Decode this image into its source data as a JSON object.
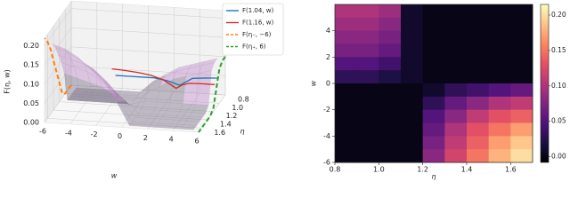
{
  "chart_data": [
    {
      "type": "surface3d",
      "xlabel": "w",
      "ylabel": "η",
      "zlabel": "F(η, w)",
      "xlim": [
        -6,
        6
      ],
      "xticks": [
        -6,
        -4,
        -2,
        0,
        2,
        4,
        6
      ],
      "ylim": [
        0.8,
        1.7
      ],
      "yticks": [
        0.8,
        {
          "value": 1.0,
          "label": "1.0"
        },
        1.2,
        1.4,
        1.6
      ],
      "zlim": [
        0,
        0.22
      ],
      "zticks": [
        {
          "value": 0,
          "label": "0.00"
        },
        {
          "value": 0.05,
          "label": "0.05"
        },
        {
          "value": 0.1,
          "label": "0.10"
        },
        {
          "value": 0.15,
          "label": "0.15"
        },
        {
          "value": 0.2,
          "label": "0.20"
        }
      ],
      "legend": "upper right",
      "series": [
        {
          "name": "F(1.04, w)",
          "color": "#1f77b4",
          "dashed": false,
          "eta": 1.04,
          "w": [
            -2,
            -1,
            0,
            1,
            2,
            2.5,
            3,
            3.5,
            4,
            5,
            6
          ],
          "values": [
            0.06,
            0.06,
            0.06,
            0.06,
            0.055,
            0.05,
            0.045,
            0.055,
            0.065,
            0.068,
            0.07
          ]
        },
        {
          "name": "F(1.16, w)",
          "color": "#d62728",
          "dashed": false,
          "eta": 1.16,
          "w": [
            -2,
            -1,
            0,
            1,
            2,
            2.5,
            3,
            3.5,
            4,
            5,
            6
          ],
          "values": [
            0.09,
            0.088,
            0.085,
            0.08,
            0.07,
            0.06,
            0.05,
            0.06,
            0.065,
            0.066,
            0.066
          ]
        },
        {
          "name": "F(η₋, −6)",
          "color": "#ff7f0e",
          "dashed": true,
          "w": -6,
          "eta": [
            0.8,
            0.9,
            1.0,
            1.1,
            1.2,
            1.3,
            1.4,
            1.5,
            1.6,
            1.7
          ],
          "values": [
            0,
            0,
            0,
            0.01,
            0.05,
            0.09,
            0.13,
            0.17,
            0.2,
            0.22
          ]
        },
        {
          "name": "F(η₊, 6)",
          "color": "#2ca02c",
          "dashed": true,
          "w": 6,
          "eta": [
            0.8,
            0.9,
            1.0,
            1.1,
            1.2,
            1.3,
            1.4,
            1.5,
            1.6,
            1.7
          ],
          "values": [
            0.1,
            0.1,
            0.09,
            0.05,
            0.01,
            0,
            0,
            0,
            0,
            0
          ]
        }
      ]
    },
    {
      "type": "heatmap",
      "xlabel": "η",
      "ylabel": "w",
      "colormap": "magma",
      "xlim": [
        0.8,
        1.7
      ],
      "xticks": [
        0.8,
        {
          "value": 1.0,
          "label": "1.0"
        },
        1.2,
        1.4,
        1.6
      ],
      "ylim": [
        -6,
        6
      ],
      "yticks": [
        -6,
        -4,
        -2,
        0,
        2,
        4
      ],
      "clim": [
        -0.008,
        0.215
      ],
      "cticks": [
        {
          "value": 0,
          "label": "0.00"
        },
        {
          "value": 0.05,
          "label": "0.05"
        },
        {
          "value": 0.1,
          "label": "0.10"
        },
        {
          "value": 0.15,
          "label": "0.15"
        },
        {
          "value": 0.2,
          "label": "0.20"
        }
      ],
      "x": [
        0.85,
        0.95,
        1.05,
        1.15,
        1.25,
        1.35,
        1.45,
        1.55,
        1.65
      ],
      "y": [
        5.5,
        4.5,
        3.5,
        2.5,
        1.5,
        0.5,
        -0.5,
        -1.5,
        -2.5,
        -3.5,
        -4.5,
        -5.5
      ],
      "z": [
        [
          0.1,
          0.1,
          0.09,
          0.01,
          0,
          0,
          0,
          0,
          0
        ],
        [
          0.09,
          0.09,
          0.08,
          0.01,
          0,
          0,
          0,
          0,
          0
        ],
        [
          0.08,
          0.08,
          0.07,
          0.01,
          0,
          0,
          0,
          0,
          0
        ],
        [
          0.07,
          0.07,
          0.06,
          0.01,
          0,
          0,
          0,
          0,
          0
        ],
        [
          0.05,
          0.05,
          0.04,
          0.01,
          0,
          0,
          0,
          0,
          0
        ],
        [
          0.03,
          0.03,
          0.02,
          0.01,
          0,
          0,
          0,
          0,
          0
        ],
        [
          0,
          0,
          0,
          0,
          0.01,
          0.03,
          0.04,
          0.05,
          0.06
        ],
        [
          0,
          0,
          0,
          0,
          0.03,
          0.06,
          0.08,
          0.1,
          0.11
        ],
        [
          0,
          0,
          0,
          0,
          0.05,
          0.08,
          0.11,
          0.13,
          0.14
        ],
        [
          0,
          0,
          0,
          0,
          0.06,
          0.1,
          0.13,
          0.15,
          0.17
        ],
        [
          0,
          0,
          0,
          0,
          0.07,
          0.11,
          0.14,
          0.17,
          0.19
        ],
        [
          0,
          0,
          0,
          0,
          0.08,
          0.12,
          0.15,
          0.18,
          0.2
        ]
      ]
    }
  ]
}
